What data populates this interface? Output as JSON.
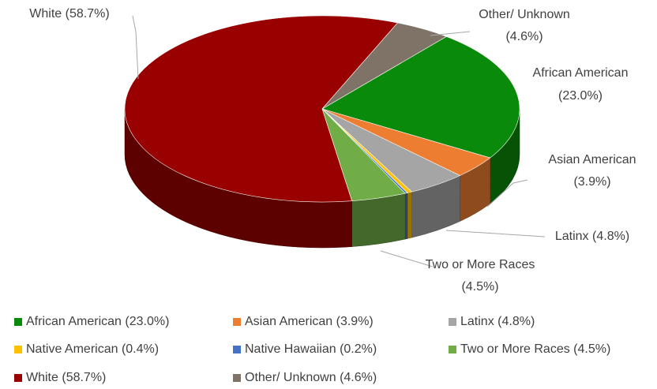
{
  "chart_data": {
    "type": "pie",
    "three_d": true,
    "categories": [
      "African American",
      "Asian American",
      "Latinx",
      "Native American",
      "Native Hawaiian",
      "Two or More Races",
      "White",
      "Other/ Unknown"
    ],
    "values": [
      23.0,
      3.9,
      4.8,
      0.4,
      0.2,
      4.5,
      58.7,
      4.6
    ],
    "value_labels": [
      "(23.0%)",
      "(3.9%)",
      "(4.8%)",
      "(0.4%)",
      "(0.2%)",
      "(4.5%)",
      "(58.7%)",
      "(4.6%)"
    ],
    "colors": [
      "#0a8a0a",
      "#ed7d31",
      "#a5a5a5",
      "#ffc000",
      "#4472c4",
      "#70ad47",
      "#990000",
      "#7f7368"
    ],
    "legend": "bottom"
  }
}
